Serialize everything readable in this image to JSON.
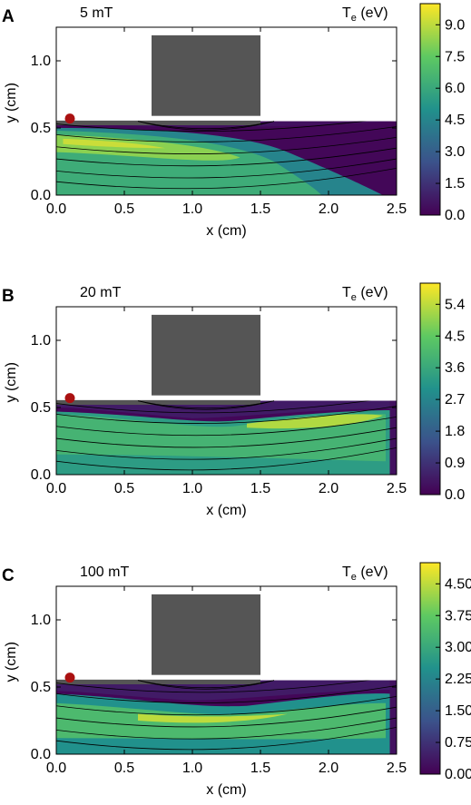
{
  "chart_data": [
    {
      "type": "heatmap",
      "panel_label": "A",
      "field_label": "5 mT",
      "colorbar_title": "Te (eV)",
      "colorbar_title_main": "T",
      "colorbar_title_sub": "e",
      "colorbar_title_unit": " (eV)",
      "colorbar_ticks": [
        "0.0",
        "1.5",
        "3.0",
        "4.5",
        "6.0",
        "7.5",
        "9.0"
      ],
      "colorbar_range": [
        0,
        10
      ],
      "xlabel": "x (cm)",
      "ylabel": "y (cm)",
      "xticks": [
        "0.0",
        "0.5",
        "1.0",
        "1.5",
        "2.0",
        "2.5"
      ],
      "yticks": [
        "0.0",
        "0.5",
        "1.0"
      ],
      "xlim": [
        0,
        2.5
      ],
      "ylim": [
        0,
        1.25
      ],
      "magnet_block": {
        "x": [
          0.7,
          1.5
        ],
        "y": [
          0.59,
          1.19
        ]
      },
      "cathode_marker": {
        "x": 0.1,
        "y": 0.57
      },
      "approx_peak_Te": 9.0,
      "peak_region": {
        "x": [
          0.0,
          1.4
        ],
        "y": [
          0.3,
          0.45
        ]
      }
    },
    {
      "type": "heatmap",
      "panel_label": "B",
      "field_label": "20 mT",
      "colorbar_title": "Te (eV)",
      "colorbar_title_main": "T",
      "colorbar_title_sub": "e",
      "colorbar_title_unit": " (eV)",
      "colorbar_ticks": [
        "0.0",
        "0.9",
        "1.8",
        "2.7",
        "3.6",
        "4.5",
        "5.4"
      ],
      "colorbar_range": [
        0,
        6
      ],
      "xlabel": "x (cm)",
      "ylabel": "y (cm)",
      "xticks": [
        "0.0",
        "0.5",
        "1.0",
        "1.5",
        "2.0",
        "2.5"
      ],
      "yticks": [
        "0.0",
        "0.5",
        "1.0"
      ],
      "xlim": [
        0,
        2.5
      ],
      "ylim": [
        0,
        1.25
      ],
      "magnet_block": {
        "x": [
          0.7,
          1.5
        ],
        "y": [
          0.59,
          1.19
        ]
      },
      "cathode_marker": {
        "x": 0.1,
        "y": 0.57
      },
      "approx_peak_Te": 5.4,
      "peak_region": {
        "x": [
          1.5,
          2.4
        ],
        "y": [
          0.35,
          0.5
        ]
      }
    },
    {
      "type": "heatmap",
      "panel_label": "C",
      "field_label": "100 mT",
      "colorbar_title": "Te (eV)",
      "colorbar_title_main": "T",
      "colorbar_title_sub": "e",
      "colorbar_title_unit": " (eV)",
      "colorbar_ticks": [
        "0.00",
        "0.75",
        "1.50",
        "2.25",
        "3.00",
        "3.75",
        "4.50"
      ],
      "colorbar_range": [
        0,
        5
      ],
      "xlabel": "x (cm)",
      "ylabel": "y (cm)",
      "xticks": [
        "0.0",
        "0.5",
        "1.0",
        "1.5",
        "2.0",
        "2.5"
      ],
      "yticks": [
        "0.0",
        "0.5",
        "1.0"
      ],
      "xlim": [
        0,
        2.5
      ],
      "ylim": [
        0,
        1.25
      ],
      "magnet_block": {
        "x": [
          0.7,
          1.5
        ],
        "y": [
          0.59,
          1.19
        ]
      },
      "cathode_marker": {
        "x": 0.1,
        "y": 0.57
      },
      "approx_peak_Te": 4.5,
      "peak_region": {
        "x": [
          0.7,
          1.6
        ],
        "y": [
          0.2,
          0.35
        ]
      }
    }
  ],
  "colors": {
    "colormap": [
      "#440154",
      "#3b528b",
      "#21918c",
      "#5ec962",
      "#fde725"
    ],
    "magnet": "#555555",
    "marker": "#aa1111",
    "plasma_top_band": "#555555"
  }
}
